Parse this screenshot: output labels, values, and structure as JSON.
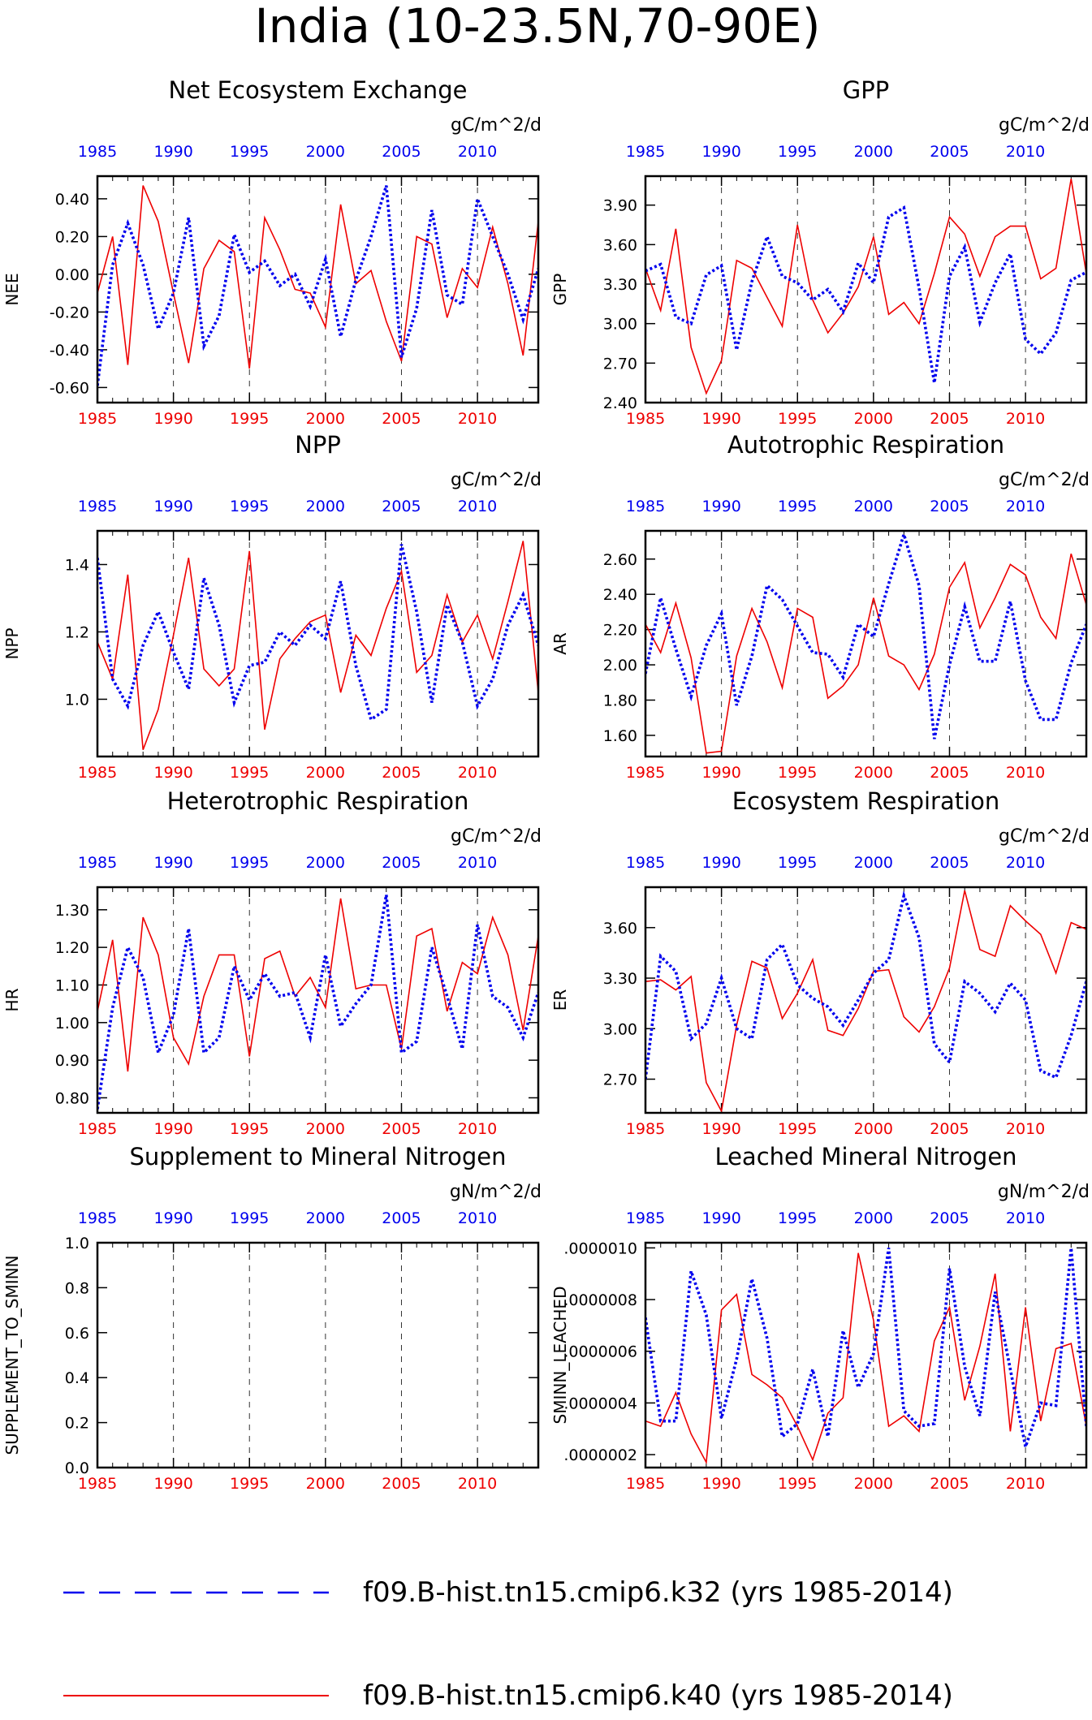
{
  "title": "India (10-23.5N,70-90E)",
  "years": [
    1985,
    1986,
    1987,
    1988,
    1989,
    1990,
    1991,
    1992,
    1993,
    1994,
    1995,
    1996,
    1997,
    1998,
    1999,
    2000,
    2001,
    2002,
    2003,
    2004,
    2005,
    2006,
    2007,
    2008,
    2009,
    2010,
    2011,
    2012,
    2013,
    2014
  ],
  "x_ticks": [
    "1985",
    "1990",
    "1995",
    "2000",
    "2005",
    "2010"
  ],
  "legend": [
    {
      "label": "f09.B-hist.tn15.cmip6.k32 (yrs 1985-2014)",
      "color": "#0000ee",
      "style": "dashed"
    },
    {
      "label": "f09.B-hist.tn15.cmip6.k40 (yrs 1985-2014)",
      "color": "#ee0000",
      "style": "solid"
    }
  ],
  "colors": {
    "k32": "#0000ee",
    "k40": "#ee0000",
    "axis": "#000000"
  },
  "chart_data": [
    {
      "type": "line",
      "title": "Net Ecosystem Exchange",
      "units": "gC/m^2/d",
      "ylabel": "NEE",
      "ylim": [
        -0.68,
        0.52
      ],
      "yticks": [
        -0.6,
        -0.4,
        -0.2,
        0.0,
        0.2,
        0.4
      ],
      "ytick_labels": [
        "-0.60",
        "-0.40",
        "-0.20",
        "0.00",
        "0.20",
        "0.40"
      ],
      "series": [
        {
          "values": [
            -0.1,
            0.2,
            -0.48,
            0.47,
            0.28,
            -0.1,
            -0.47,
            0.03,
            0.18,
            0.12,
            -0.5,
            0.3,
            0.13,
            -0.08,
            -0.1,
            -0.28,
            0.37,
            -0.05,
            0.02,
            -0.25,
            -0.46,
            0.2,
            0.16,
            -0.23,
            0.03,
            -0.07,
            0.25,
            -0.05,
            -0.43,
            0.28
          ]
        },
        {
          "values": [
            -0.59,
            0.05,
            0.27,
            0.05,
            -0.29,
            -0.1,
            0.3,
            -0.38,
            -0.22,
            0.21,
            0.01,
            0.07,
            -0.06,
            0.0,
            -0.17,
            0.08,
            -0.33,
            -0.03,
            0.2,
            0.47,
            -0.44,
            -0.18,
            0.34,
            -0.11,
            -0.16,
            0.4,
            0.2,
            0.0,
            -0.24,
            0.03
          ]
        }
      ]
    },
    {
      "type": "line",
      "title": "GPP",
      "units": "gC/m^2/d",
      "ylabel": "GPP",
      "ylim": [
        2.4,
        4.12
      ],
      "yticks": [
        2.4,
        2.7,
        3.0,
        3.3,
        3.6,
        3.9
      ],
      "ytick_labels": [
        "2.40",
        "2.70",
        "3.00",
        "3.30",
        "3.60",
        "3.90"
      ],
      "series": [
        {
          "values": [
            3.42,
            3.1,
            3.72,
            2.82,
            2.47,
            2.72,
            3.48,
            3.42,
            3.2,
            2.98,
            3.75,
            3.18,
            2.93,
            3.08,
            3.28,
            3.66,
            3.07,
            3.16,
            3.0,
            3.38,
            3.81,
            3.68,
            3.36,
            3.66,
            3.74,
            3.74,
            3.34,
            3.42,
            4.1,
            3.38
          ]
        },
        {
          "values": [
            3.4,
            3.45,
            3.05,
            3.0,
            3.37,
            3.44,
            2.8,
            3.32,
            3.66,
            3.36,
            3.31,
            3.18,
            3.26,
            3.09,
            3.46,
            3.31,
            3.81,
            3.88,
            3.27,
            2.55,
            3.36,
            3.58,
            3.01,
            3.31,
            3.53,
            2.88,
            2.77,
            2.93,
            3.33,
            3.39
          ]
        }
      ]
    },
    {
      "type": "line",
      "title": "NPP",
      "units": "gC/m^2/d",
      "ylabel": "NPP",
      "ylim": [
        0.83,
        1.5
      ],
      "yticks": [
        1.0,
        1.2,
        1.4
      ],
      "ytick_labels": [
        "1.0",
        "1.2",
        "1.4"
      ],
      "series": [
        {
          "values": [
            1.17,
            1.06,
            1.37,
            0.85,
            0.97,
            1.19,
            1.42,
            1.09,
            1.04,
            1.09,
            1.44,
            0.91,
            1.12,
            1.18,
            1.23,
            1.25,
            1.02,
            1.19,
            1.13,
            1.27,
            1.38,
            1.08,
            1.13,
            1.31,
            1.17,
            1.25,
            1.12,
            1.29,
            1.47,
            1.02
          ]
        },
        {
          "values": [
            1.42,
            1.06,
            0.98,
            1.16,
            1.26,
            1.14,
            1.03,
            1.36,
            1.22,
            0.99,
            1.1,
            1.11,
            1.2,
            1.16,
            1.22,
            1.18,
            1.35,
            1.1,
            0.94,
            0.97,
            1.46,
            1.26,
            0.99,
            1.28,
            1.17,
            0.98,
            1.06,
            1.22,
            1.31,
            1.16
          ]
        }
      ]
    },
    {
      "type": "line",
      "title": "Autotrophic Respiration",
      "units": "gC/m^2/d",
      "ylabel": "AR",
      "ylim": [
        1.48,
        2.76
      ],
      "yticks": [
        1.6,
        1.8,
        2.0,
        2.2,
        2.4,
        2.6
      ],
      "ytick_labels": [
        "1.60",
        "1.80",
        "2.00",
        "2.20",
        "2.40",
        "2.60"
      ],
      "series": [
        {
          "values": [
            2.23,
            2.07,
            2.35,
            2.04,
            1.5,
            1.51,
            2.05,
            2.32,
            2.13,
            1.87,
            2.32,
            2.27,
            1.81,
            1.88,
            2.0,
            2.38,
            2.05,
            2.0,
            1.86,
            2.06,
            2.44,
            2.58,
            2.21,
            2.38,
            2.57,
            2.51,
            2.27,
            2.15,
            2.63,
            2.34
          ]
        },
        {
          "values": [
            1.95,
            2.38,
            2.09,
            1.82,
            2.11,
            2.29,
            1.77,
            2.05,
            2.45,
            2.37,
            2.22,
            2.07,
            2.06,
            1.93,
            2.23,
            2.16,
            2.46,
            2.74,
            2.45,
            1.58,
            2.0,
            2.33,
            2.02,
            2.02,
            2.36,
            1.91,
            1.69,
            1.69,
            2.01,
            2.23
          ]
        }
      ]
    },
    {
      "type": "line",
      "title": "Heterotrophic Respiration",
      "units": "gC/m^2/d",
      "ylabel": "HR",
      "ylim": [
        0.76,
        1.36
      ],
      "yticks": [
        0.8,
        0.9,
        1.0,
        1.1,
        1.2,
        1.3
      ],
      "ytick_labels": [
        "0.80",
        "0.90",
        "1.00",
        "1.10",
        "1.20",
        "1.30"
      ],
      "series": [
        {
          "values": [
            1.03,
            1.22,
            0.87,
            1.28,
            1.18,
            0.96,
            0.89,
            1.07,
            1.18,
            1.18,
            0.91,
            1.17,
            1.19,
            1.07,
            1.12,
            1.04,
            1.33,
            1.09,
            1.1,
            1.1,
            0.93,
            1.23,
            1.25,
            1.03,
            1.16,
            1.13,
            1.28,
            1.18,
            0.98,
            1.23
          ]
        },
        {
          "values": [
            0.77,
            1.04,
            1.2,
            1.12,
            0.92,
            1.02,
            1.25,
            0.92,
            0.96,
            1.15,
            1.06,
            1.13,
            1.07,
            1.08,
            0.96,
            1.18,
            0.99,
            1.05,
            1.1,
            1.34,
            0.92,
            0.95,
            1.2,
            1.07,
            0.93,
            1.26,
            1.07,
            1.04,
            0.96,
            1.08
          ]
        }
      ]
    },
    {
      "type": "line",
      "title": "Ecosystem Respiration",
      "units": "gC/m^2/d",
      "ylabel": "ER",
      "ylim": [
        2.5,
        3.84
      ],
      "yticks": [
        2.7,
        3.0,
        3.3,
        3.6
      ],
      "ytick_labels": [
        "2.70",
        "3.00",
        "3.30",
        "3.60"
      ],
      "series": [
        {
          "values": [
            3.28,
            3.29,
            3.23,
            3.31,
            2.68,
            2.51,
            3.02,
            3.4,
            3.36,
            3.06,
            3.21,
            3.41,
            2.99,
            2.96,
            3.12,
            3.34,
            3.35,
            3.07,
            2.98,
            3.13,
            3.36,
            3.82,
            3.47,
            3.43,
            3.73,
            3.64,
            3.56,
            3.33,
            3.63,
            3.59
          ]
        },
        {
          "values": [
            2.7,
            3.43,
            3.34,
            2.94,
            3.03,
            3.3,
            3.0,
            2.94,
            3.41,
            3.5,
            3.26,
            3.18,
            3.13,
            3.02,
            3.17,
            3.33,
            3.41,
            3.79,
            3.54,
            2.91,
            2.8,
            3.28,
            3.21,
            3.1,
            3.27,
            3.17,
            2.75,
            2.71,
            2.96,
            3.28
          ]
        }
      ]
    },
    {
      "type": "line",
      "title": "Supplement to Mineral Nitrogen",
      "units": "gN/m^2/d",
      "ylabel": "SUPPLEMENT_TO_SMINN",
      "ylim": [
        0.0,
        1.0
      ],
      "yticks": [
        0.0,
        0.2,
        0.4,
        0.6,
        0.8,
        1.0
      ],
      "ytick_labels": [
        "0.0",
        "0.2",
        "0.4",
        "0.6",
        "0.8",
        "1.0"
      ],
      "series": []
    },
    {
      "type": "line",
      "title": "Leached Mineral Nitrogen",
      "units": "gN/m^2/d",
      "ylabel": "SMINN_LEACHED",
      "ylim": [
        1.5e-07,
        1.02e-06
      ],
      "yticks": [
        2e-07,
        4e-07,
        6e-07,
        8e-07,
        1e-06
      ],
      "ytick_labels": [
        ".0000002",
        ".0000004",
        ".0000006",
        ".0000008",
        ".0000010"
      ],
      "series": [
        {
          "values": [
            3.3e-07,
            3.1e-07,
            4.4e-07,
            2.8e-07,
            1.7e-07,
            7.6e-07,
            8.2e-07,
            5.1e-07,
            4.7e-07,
            4.2e-07,
            3.1e-07,
            1.8e-07,
            3.6e-07,
            4.2e-07,
            9.8e-07,
            7.2e-07,
            3.1e-07,
            3.5e-07,
            2.9e-07,
            6.4e-07,
            7.7e-07,
            4.1e-07,
            6.2e-07,
            9e-07,
            2.9e-07,
            7.7e-07,
            3.3e-07,
            6.1e-07,
            6.3e-07,
            3.1e-07
          ]
        },
        {
          "values": [
            7.3e-07,
            3.3e-07,
            3.3e-07,
            9.1e-07,
            7.4e-07,
            3.4e-07,
            5.7e-07,
            8.8e-07,
            6.5e-07,
            2.7e-07,
            3.2e-07,
            5.3e-07,
            2.7e-07,
            6.8e-07,
            4.6e-07,
            5.9e-07,
            1e-06,
            3.7e-07,
            3.1e-07,
            3.2e-07,
            9.2e-07,
            5.4e-07,
            3.5e-07,
            8.3e-07,
            5.3e-07,
            2.3e-07,
            4e-07,
            3.9e-07,
            1e-06,
            3.1e-07
          ]
        }
      ]
    }
  ]
}
